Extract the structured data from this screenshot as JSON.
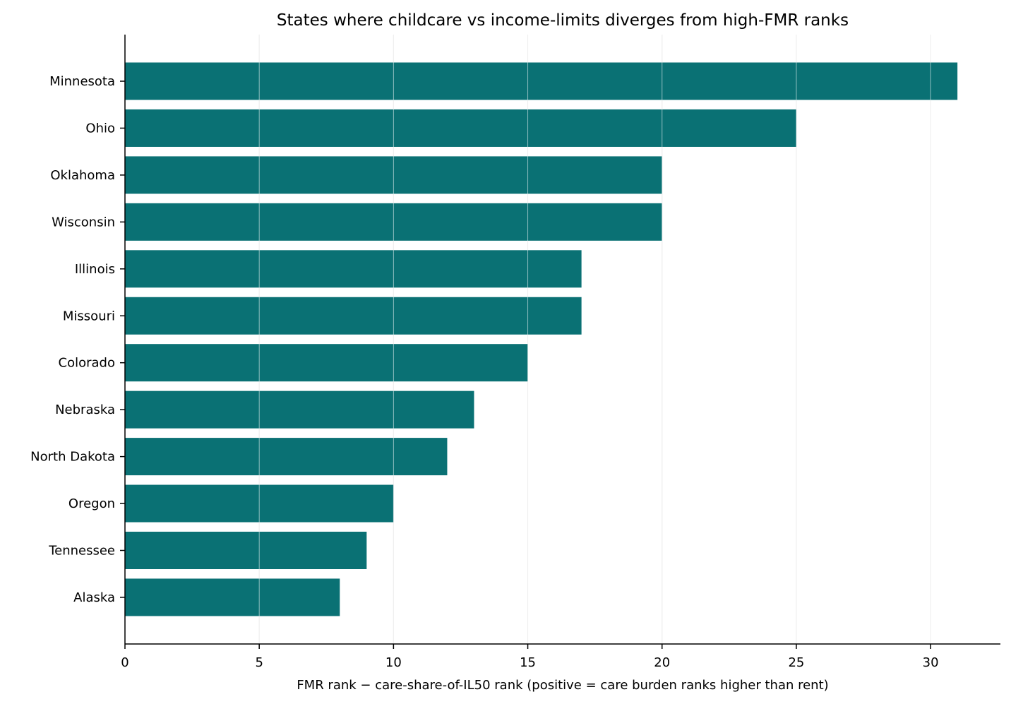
{
  "chart_data": {
    "type": "bar",
    "orientation": "horizontal",
    "title": "States where childcare vs income-limits diverges from high-FMR ranks",
    "xlabel": "FMR rank − care-share-of-IL50 rank (positive = care burden ranks higher than rent)",
    "ylabel": "",
    "categories": [
      "Minnesota",
      "Ohio",
      "Oklahoma",
      "Wisconsin",
      "Illinois",
      "Missouri",
      "Colorado",
      "Nebraska",
      "North Dakota",
      "Oregon",
      "Tennessee",
      "Alaska"
    ],
    "values": [
      31,
      25,
      20,
      20,
      17,
      17,
      15,
      13,
      12,
      10,
      9,
      8
    ],
    "xlim": [
      0,
      32.6
    ],
    "xticks": [
      0,
      5,
      10,
      15,
      20,
      25,
      30
    ],
    "grid": "x",
    "bar_color": "#0a7174"
  }
}
